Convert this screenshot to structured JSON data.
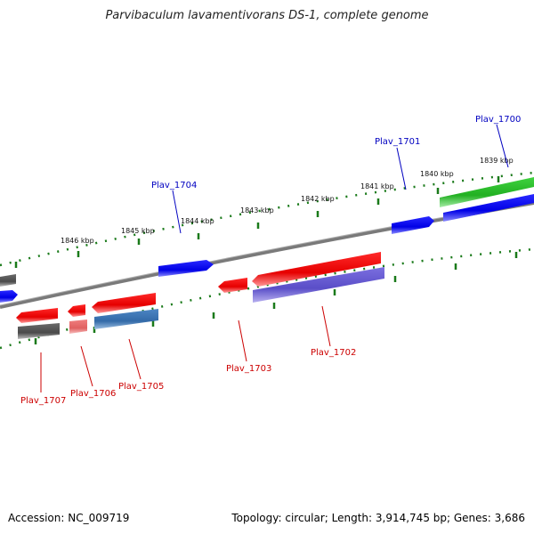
{
  "title": "Parvibaculum lavamentivorans DS-1, complete genome",
  "footer": {
    "accession": "Accession: NC_009719",
    "summary": "Topology: circular; Length: 3,914,745 bp; Genes: 3,686"
  },
  "colors": {
    "forward_label": "#0000c0",
    "reverse_label": "#cc0000",
    "ticks": "#1a7a1a",
    "backbone": "#7a7a7a"
  },
  "scale_labels": [
    "1839 kbp",
    "1840 kbp",
    "1841 kbp",
    "1842 kbp",
    "1843 kbp",
    "1844 kbp",
    "1845 kbp",
    "1846 kbp"
  ],
  "genes": [
    {
      "name": "Plav_1700",
      "strand": "forward",
      "color": "blue"
    },
    {
      "name": "Plav_1701",
      "strand": "forward",
      "color": "blue"
    },
    {
      "name": "Plav_1702",
      "strand": "reverse",
      "color": "red"
    },
    {
      "name": "Plav_1703",
      "strand": "reverse",
      "color": "red"
    },
    {
      "name": "Plav_1704",
      "strand": "forward",
      "color": "blue"
    },
    {
      "name": "Plav_1705",
      "strand": "reverse",
      "color": "red"
    },
    {
      "name": "Plav_1706",
      "strand": "reverse",
      "color": "light-red"
    },
    {
      "name": "Plav_1707",
      "strand": "reverse",
      "color": "red"
    }
  ]
}
